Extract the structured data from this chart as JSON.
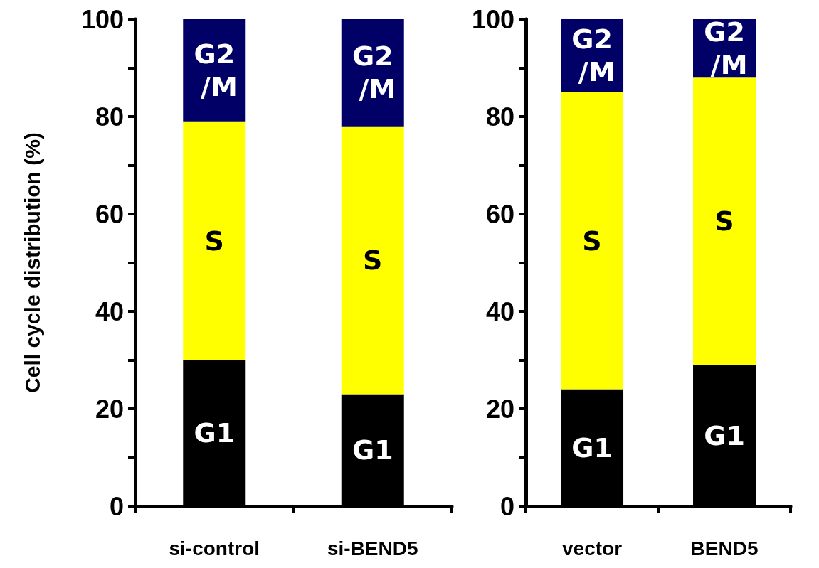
{
  "chart_data": [
    {
      "type": "bar",
      "stacked": true,
      "ylabel": "Cell cycle distribution (%)",
      "categories": [
        "si-control",
        "si-BEND5"
      ],
      "ylim": [
        0,
        100
      ],
      "yticks": [
        0,
        {
          "value": 10,
          "label": null
        },
        20,
        {
          "value": 30,
          "label": null
        },
        40,
        {
          "value": 50,
          "label": null
        },
        60,
        {
          "value": 70,
          "label": null
        },
        80,
        {
          "value": 90,
          "label": null
        },
        100
      ],
      "grid": false,
      "legend": false,
      "series": [
        {
          "name": "G1",
          "color": "#000000",
          "values": [
            30,
            23
          ]
        },
        {
          "name": "S",
          "color": "#ffff00",
          "values": [
            49,
            55
          ]
        },
        {
          "name": "G2 /M",
          "color": "#000066",
          "values": [
            21,
            22
          ]
        }
      ]
    },
    {
      "type": "bar",
      "stacked": true,
      "categories": [
        "vector",
        "BEND5"
      ],
      "ylim": [
        0,
        100
      ],
      "yticks": [
        0,
        {
          "value": 10,
          "label": null
        },
        20,
        {
          "value": 30,
          "label": null
        },
        40,
        {
          "value": 50,
          "label": null
        },
        60,
        {
          "value": 70,
          "label": null
        },
        80,
        {
          "value": 90,
          "label": null
        },
        100
      ],
      "grid": false,
      "legend": false,
      "series": [
        {
          "name": "G1",
          "color": "#000000",
          "values": [
            24,
            29
          ]
        },
        {
          "name": "S",
          "color": "#ffff00",
          "values": [
            61,
            59
          ]
        },
        {
          "name": "G2 /M",
          "color": "#000066",
          "values": [
            15,
            12
          ]
        }
      ]
    }
  ]
}
